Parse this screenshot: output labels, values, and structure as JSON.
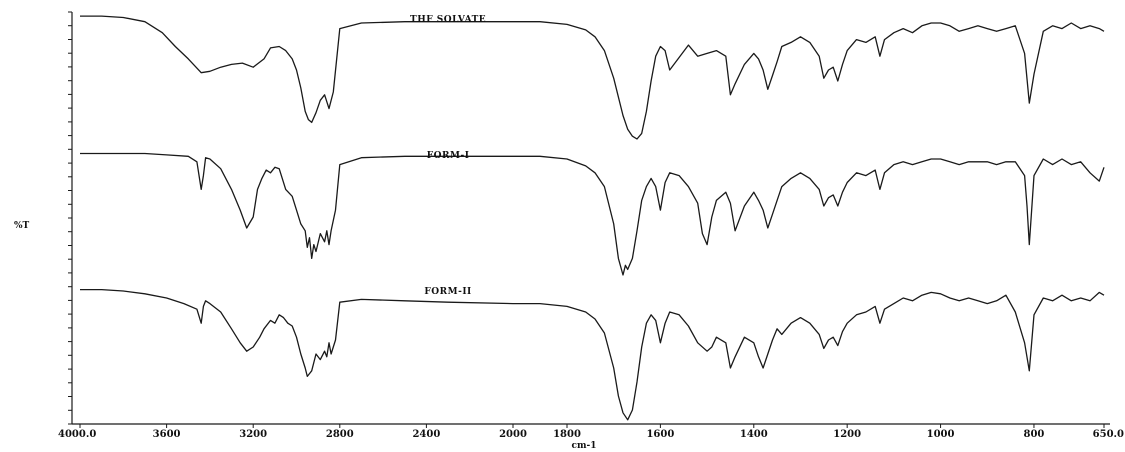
{
  "chart_data": {
    "type": "line",
    "xlabel": "cm-1",
    "ylabel": "%T",
    "xlim": [
      4000,
      650
    ],
    "x_ticks": [
      "4000.0",
      "3600",
      "3200",
      "2800",
      "2400",
      "2000",
      "1800",
      "1600",
      "1400",
      "1200",
      "1000",
      "800",
      "650.0"
    ],
    "series": [
      {
        "name": "THF SOLVATE",
        "x": [
          4000,
          3900,
          3800,
          3700,
          3620,
          3560,
          3500,
          3440,
          3400,
          3350,
          3300,
          3250,
          3200,
          3150,
          3120,
          3080,
          3050,
          3020,
          3000,
          2980,
          2960,
          2945,
          2930,
          2910,
          2890,
          2870,
          2850,
          2830,
          2800,
          2700,
          2500,
          2300,
          2000,
          1900,
          1800,
          1760,
          1740,
          1720,
          1700,
          1680,
          1670,
          1660,
          1650,
          1640,
          1630,
          1620,
          1610,
          1600,
          1590,
          1580,
          1560,
          1540,
          1520,
          1500,
          1480,
          1460,
          1450,
          1440,
          1420,
          1400,
          1390,
          1380,
          1370,
          1360,
          1350,
          1340,
          1320,
          1300,
          1280,
          1260,
          1250,
          1240,
          1230,
          1220,
          1210,
          1200,
          1180,
          1160,
          1140,
          1130,
          1120,
          1100,
          1080,
          1060,
          1040,
          1020,
          1000,
          980,
          960,
          940,
          920,
          900,
          880,
          860,
          840,
          820,
          810,
          800,
          780,
          760,
          740,
          720,
          700,
          680,
          660,
          650
        ],
        "y": [
          97,
          97,
          96,
          93,
          85,
          75,
          66,
          56,
          57,
          60,
          62,
          63,
          60,
          66,
          74,
          75,
          72,
          66,
          58,
          45,
          28,
          22,
          20,
          27,
          36,
          40,
          30,
          42,
          88,
          92,
          93,
          93,
          93,
          93,
          91,
          87,
          82,
          72,
          52,
          25,
          15,
          10,
          8,
          12,
          28,
          50,
          68,
          75,
          72,
          58,
          67,
          76,
          68,
          70,
          72,
          68,
          40,
          48,
          62,
          70,
          66,
          58,
          44,
          54,
          64,
          75,
          78,
          82,
          78,
          68,
          52,
          58,
          60,
          50,
          62,
          72,
          80,
          78,
          82,
          68,
          80,
          85,
          88,
          85,
          90,
          92,
          92,
          90,
          86,
          88,
          90,
          88,
          86,
          88,
          90,
          70,
          34,
          55,
          86,
          90,
          88,
          92,
          88,
          90,
          88,
          86
        ]
      },
      {
        "name": "FORM-I",
        "x": [
          4000,
          3900,
          3800,
          3700,
          3600,
          3500,
          3460,
          3440,
          3430,
          3420,
          3400,
          3350,
          3300,
          3260,
          3230,
          3200,
          3180,
          3160,
          3140,
          3120,
          3100,
          3080,
          3050,
          3020,
          3000,
          2980,
          2960,
          2950,
          2940,
          2930,
          2920,
          2910,
          2890,
          2870,
          2860,
          2850,
          2840,
          2820,
          2800,
          2700,
          2500,
          2300,
          2000,
          1900,
          1800,
          1760,
          1740,
          1720,
          1700,
          1690,
          1680,
          1675,
          1670,
          1660,
          1650,
          1640,
          1630,
          1620,
          1610,
          1600,
          1590,
          1580,
          1560,
          1540,
          1520,
          1510,
          1500,
          1490,
          1480,
          1460,
          1450,
          1440,
          1420,
          1400,
          1390,
          1380,
          1370,
          1360,
          1350,
          1340,
          1320,
          1300,
          1280,
          1260,
          1250,
          1240,
          1230,
          1220,
          1210,
          1200,
          1180,
          1160,
          1140,
          1130,
          1120,
          1100,
          1080,
          1060,
          1040,
          1020,
          1000,
          980,
          960,
          940,
          920,
          900,
          880,
          860,
          840,
          820,
          815,
          810,
          800,
          780,
          760,
          740,
          720,
          700,
          680,
          660,
          650
        ],
        "y": [
          96,
          96,
          96,
          96,
          95,
          94,
          90,
          70,
          80,
          93,
          92,
          85,
          70,
          55,
          42,
          50,
          70,
          78,
          84,
          82,
          86,
          85,
          70,
          65,
          55,
          45,
          40,
          28,
          35,
          20,
          30,
          25,
          38,
          32,
          40,
          30,
          40,
          55,
          88,
          93,
          94,
          94,
          94,
          94,
          92,
          87,
          82,
          72,
          45,
          20,
          8,
          15,
          12,
          20,
          40,
          62,
          72,
          78,
          72,
          55,
          75,
          82,
          80,
          72,
          60,
          38,
          30,
          50,
          62,
          68,
          60,
          40,
          58,
          68,
          62,
          55,
          42,
          52,
          62,
          72,
          78,
          82,
          78,
          70,
          58,
          64,
          66,
          58,
          68,
          75,
          82,
          80,
          84,
          70,
          82,
          88,
          90,
          88,
          90,
          92,
          92,
          90,
          88,
          90,
          90,
          90,
          88,
          90,
          90,
          80,
          58,
          30,
          80,
          92,
          88,
          92,
          88,
          90,
          82,
          76,
          86
        ]
      },
      {
        "name": "FORM-II",
        "x": [
          4000,
          3900,
          3800,
          3700,
          3600,
          3520,
          3460,
          3440,
          3430,
          3420,
          3400,
          3350,
          3300,
          3260,
          3230,
          3200,
          3170,
          3150,
          3120,
          3100,
          3080,
          3060,
          3040,
          3020,
          3000,
          2980,
          2960,
          2950,
          2940,
          2930,
          2910,
          2890,
          2870,
          2860,
          2850,
          2840,
          2820,
          2800,
          2700,
          2500,
          2300,
          2000,
          1900,
          1800,
          1760,
          1740,
          1720,
          1700,
          1690,
          1680,
          1670,
          1660,
          1650,
          1640,
          1630,
          1620,
          1610,
          1600,
          1590,
          1580,
          1560,
          1540,
          1520,
          1500,
          1490,
          1480,
          1460,
          1450,
          1440,
          1420,
          1400,
          1390,
          1380,
          1370,
          1360,
          1350,
          1340,
          1320,
          1300,
          1280,
          1260,
          1250,
          1240,
          1230,
          1220,
          1210,
          1200,
          1180,
          1160,
          1140,
          1130,
          1120,
          1100,
          1080,
          1060,
          1040,
          1020,
          1000,
          980,
          960,
          940,
          920,
          900,
          880,
          860,
          840,
          820,
          810,
          800,
          780,
          760,
          740,
          720,
          700,
          680,
          660,
          650
        ],
        "y": [
          96,
          96,
          95,
          93,
          90,
          86,
          82,
          72,
          84,
          88,
          86,
          80,
          68,
          58,
          52,
          55,
          62,
          68,
          74,
          72,
          78,
          76,
          72,
          70,
          62,
          50,
          40,
          34,
          36,
          38,
          50,
          46,
          52,
          48,
          58,
          50,
          60,
          87,
          89,
          88,
          87,
          86,
          86,
          84,
          80,
          75,
          65,
          40,
          20,
          8,
          3,
          10,
          30,
          55,
          72,
          78,
          74,
          58,
          72,
          80,
          78,
          70,
          58,
          52,
          55,
          62,
          58,
          40,
          48,
          62,
          58,
          48,
          40,
          50,
          60,
          68,
          64,
          72,
          76,
          72,
          64,
          54,
          60,
          62,
          56,
          66,
          72,
          78,
          80,
          84,
          72,
          82,
          86,
          90,
          88,
          92,
          94,
          93,
          90,
          88,
          90,
          88,
          86,
          88,
          92,
          80,
          58,
          38,
          78,
          90,
          88,
          92,
          88,
          90,
          88,
          94,
          92
        ]
      }
    ]
  }
}
